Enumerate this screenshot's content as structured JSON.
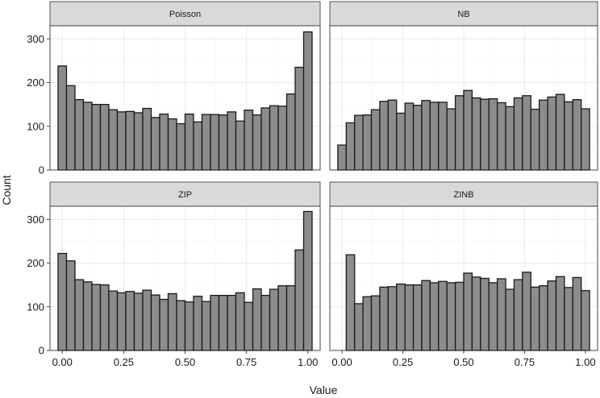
{
  "chart_data": {
    "type": "bar",
    "layout": "faceted histogram grid 2x2",
    "xlabel": "Value",
    "ylabel": "Count",
    "xlim": [
      -0.05,
      1.05
    ],
    "ylim": [
      0,
      330
    ],
    "x_ticks": [
      0,
      0.25,
      0.5,
      0.75,
      1
    ],
    "x_tick_labels": [
      "0.00",
      "0.25",
      "0.50",
      "0.75",
      "1.00"
    ],
    "y_ticks": [
      0,
      100,
      200,
      300
    ],
    "y_tick_labels": [
      "0",
      "100",
      "200",
      "300"
    ],
    "bin_width": 0.0345,
    "bin_centers": [
      0.0,
      0.0345,
      0.069,
      0.1034,
      0.1379,
      0.1724,
      0.2069,
      0.2414,
      0.2759,
      0.3103,
      0.3448,
      0.3793,
      0.4138,
      0.4483,
      0.4828,
      0.5172,
      0.5517,
      0.5862,
      0.6207,
      0.6552,
      0.6897,
      0.7241,
      0.7586,
      0.7931,
      0.8276,
      0.8621,
      0.8966,
      0.931,
      0.9655,
      1.0
    ],
    "bar_fill": "#8c8c8c",
    "bar_outline": "#1a1a1a",
    "strip_fill": "#d9d9d9",
    "grid": true,
    "panels": [
      {
        "name": "Poisson",
        "values": [
          238,
          193,
          161,
          155,
          150,
          150,
          138,
          133,
          134,
          131,
          141,
          120,
          128,
          117,
          106,
          128,
          110,
          127,
          127,
          126,
          133,
          112,
          137,
          126,
          142,
          147,
          146,
          174,
          235,
          316
        ]
      },
      {
        "name": "NB",
        "values": [
          57,
          108,
          125,
          126,
          138,
          157,
          160,
          130,
          153,
          148,
          159,
          155,
          155,
          140,
          170,
          182,
          165,
          162,
          163,
          154,
          145,
          165,
          170,
          139,
          160,
          167,
          173,
          156,
          161,
          140
        ]
      },
      {
        "name": "ZIP",
        "values": [
          222,
          205,
          162,
          157,
          151,
          150,
          136,
          132,
          135,
          131,
          138,
          127,
          117,
          130,
          114,
          111,
          124,
          112,
          126,
          126,
          126,
          132,
          110,
          141,
          126,
          140,
          148,
          148,
          230,
          318
        ]
      },
      {
        "name": "ZINB",
        "values": [
          0,
          219,
          107,
          123,
          125,
          145,
          146,
          152,
          150,
          150,
          160,
          155,
          158,
          155,
          156,
          177,
          168,
          165,
          155,
          164,
          140,
          162,
          179,
          145,
          148,
          159,
          169,
          144,
          167,
          137
        ]
      }
    ]
  }
}
